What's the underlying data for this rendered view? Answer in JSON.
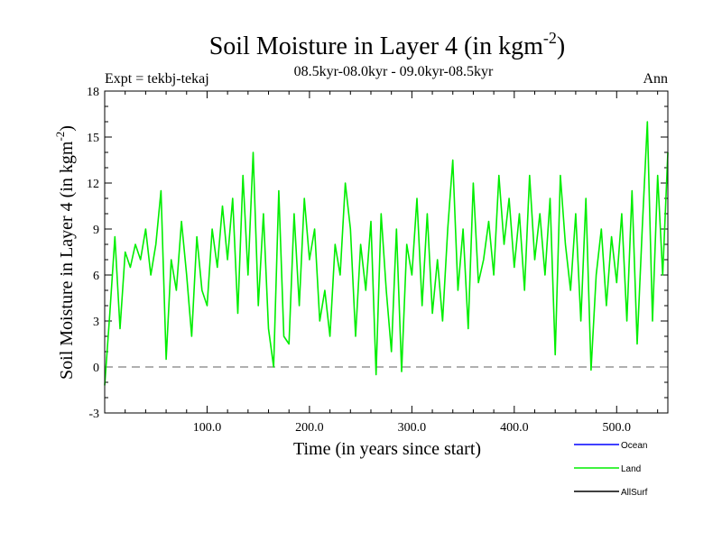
{
  "chart_data": {
    "type": "line",
    "title": "Soil Moisture in Layer 4 (in kgm",
    "title_sup": "-2",
    "title_close": ")",
    "subtitle": "08.5kyr-08.0kyr - 09.0kyr-08.5kyr",
    "expt_label": "Expt = tekbj-tekaj",
    "season_label": "Ann",
    "xlabel": "Time (in years since start)",
    "ylabel": "Soil Moisture in Layer 4 (in kgm",
    "ylabel_sup": "-2",
    "ylabel_close": ")",
    "xlim": [
      0,
      550
    ],
    "ylim": [
      -3,
      18
    ],
    "xticks": [
      100,
      200,
      300,
      400,
      500
    ],
    "xtick_labels": [
      "100.0",
      "200.0",
      "300.0",
      "400.0",
      "500.0"
    ],
    "yticks": [
      -3,
      0,
      3,
      6,
      9,
      12,
      15,
      18
    ],
    "ytick_labels": [
      "-3",
      "0",
      "3",
      "6",
      "9",
      "12",
      "15",
      "18"
    ],
    "reference_line": 0,
    "legend": [
      {
        "name": "Ocean",
        "color": "#0000ff"
      },
      {
        "name": "Land",
        "color": "#00ee00"
      },
      {
        "name": "AllSurf",
        "color": "#000000"
      }
    ],
    "series": [
      {
        "name": "Land",
        "color": "#00ee00",
        "x": [
          0,
          5,
          10,
          15,
          20,
          25,
          30,
          35,
          40,
          45,
          50,
          55,
          60,
          65,
          70,
          75,
          80,
          85,
          90,
          95,
          100,
          105,
          110,
          115,
          120,
          125,
          130,
          135,
          140,
          145,
          150,
          155,
          160,
          165,
          170,
          175,
          180,
          185,
          190,
          195,
          200,
          205,
          210,
          215,
          220,
          225,
          230,
          235,
          240,
          245,
          250,
          255,
          260,
          265,
          270,
          275,
          280,
          285,
          290,
          295,
          300,
          305,
          310,
          315,
          320,
          325,
          330,
          335,
          340,
          345,
          350,
          355,
          360,
          365,
          370,
          375,
          380,
          385,
          390,
          395,
          400,
          405,
          410,
          415,
          420,
          425,
          430,
          435,
          440,
          445,
          450,
          455,
          460,
          465,
          470,
          475,
          480,
          485,
          490,
          495,
          500,
          505,
          510,
          515,
          520,
          525,
          530,
          535,
          540,
          545,
          550
        ],
        "values": [
          -1.2,
          3.5,
          8.5,
          2.5,
          7.5,
          6.5,
          8.0,
          7.0,
          9.0,
          6.0,
          8.0,
          11.5,
          0.5,
          7.0,
          5.0,
          9.5,
          6.0,
          2.0,
          8.5,
          5.0,
          4.0,
          9.0,
          6.5,
          10.5,
          7.0,
          11.0,
          3.5,
          12.5,
          6.0,
          14.0,
          4.0,
          10.0,
          2.5,
          0.0,
          11.5,
          2.0,
          1.5,
          10.0,
          4.0,
          11.0,
          7.0,
          9.0,
          3.0,
          5.0,
          2.0,
          8.0,
          6.0,
          12.0,
          9.0,
          2.0,
          8.0,
          5.0,
          9.5,
          -0.5,
          10.0,
          5.0,
          1.0,
          9.0,
          -0.3,
          8.0,
          6.0,
          11.0,
          4.0,
          10.0,
          3.5,
          7.0,
          3.0,
          9.0,
          13.5,
          5.0,
          9.0,
          2.5,
          12.0,
          5.5,
          7.0,
          9.5,
          6.0,
          12.5,
          8.0,
          11.0,
          6.5,
          10.0,
          5.0,
          12.5,
          7.0,
          10.0,
          6.0,
          11.0,
          0.8,
          12.5,
          8.0,
          5.0,
          10.0,
          3.0,
          11.0,
          -0.2,
          6.0,
          9.0,
          4.0,
          8.5,
          5.5,
          10.0,
          3.0,
          11.5,
          1.5,
          9.0,
          16.0,
          3.0,
          12.5,
          6.0,
          14.0
        ]
      }
    ]
  }
}
